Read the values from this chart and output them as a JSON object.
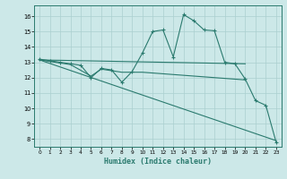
{
  "xlabel": "Humidex (Indice chaleur)",
  "background_color": "#cce8e8",
  "grid_color": "#aacfcf",
  "line_color": "#2a7a6e",
  "xlim": [
    -0.5,
    23.5
  ],
  "ylim": [
    7.5,
    16.7
  ],
  "yticks": [
    8,
    9,
    10,
    11,
    12,
    13,
    14,
    15,
    16
  ],
  "xticks": [
    0,
    1,
    2,
    3,
    4,
    5,
    6,
    7,
    8,
    9,
    10,
    11,
    12,
    13,
    14,
    15,
    16,
    17,
    18,
    19,
    20,
    21,
    22,
    23
  ],
  "series_main": {
    "x": [
      0,
      1,
      2,
      3,
      4,
      5,
      6,
      7,
      8,
      9,
      10,
      11,
      12,
      13,
      14,
      15,
      16,
      17,
      18,
      19,
      20,
      21,
      22,
      23
    ],
    "y": [
      13.2,
      13.1,
      13.0,
      12.9,
      12.8,
      12.0,
      12.6,
      12.5,
      11.7,
      12.4,
      13.6,
      15.0,
      15.1,
      13.35,
      16.1,
      15.7,
      15.1,
      15.05,
      13.0,
      12.9,
      11.9,
      10.5,
      10.2,
      7.8
    ]
  },
  "series_flat": {
    "x": [
      0,
      20
    ],
    "y": [
      13.15,
      12.9
    ]
  },
  "series_mid": {
    "x": [
      0,
      3,
      5,
      6,
      7,
      8,
      9,
      10,
      11,
      12,
      13,
      14,
      15,
      16,
      17,
      18,
      19,
      20
    ],
    "y": [
      13.15,
      12.85,
      12.1,
      12.55,
      12.45,
      12.35,
      12.35,
      12.35,
      12.3,
      12.25,
      12.2,
      12.15,
      12.1,
      12.05,
      12.0,
      11.95,
      11.9,
      11.85
    ]
  },
  "series_diag": {
    "x": [
      0,
      23
    ],
    "y": [
      13.15,
      7.9
    ]
  }
}
